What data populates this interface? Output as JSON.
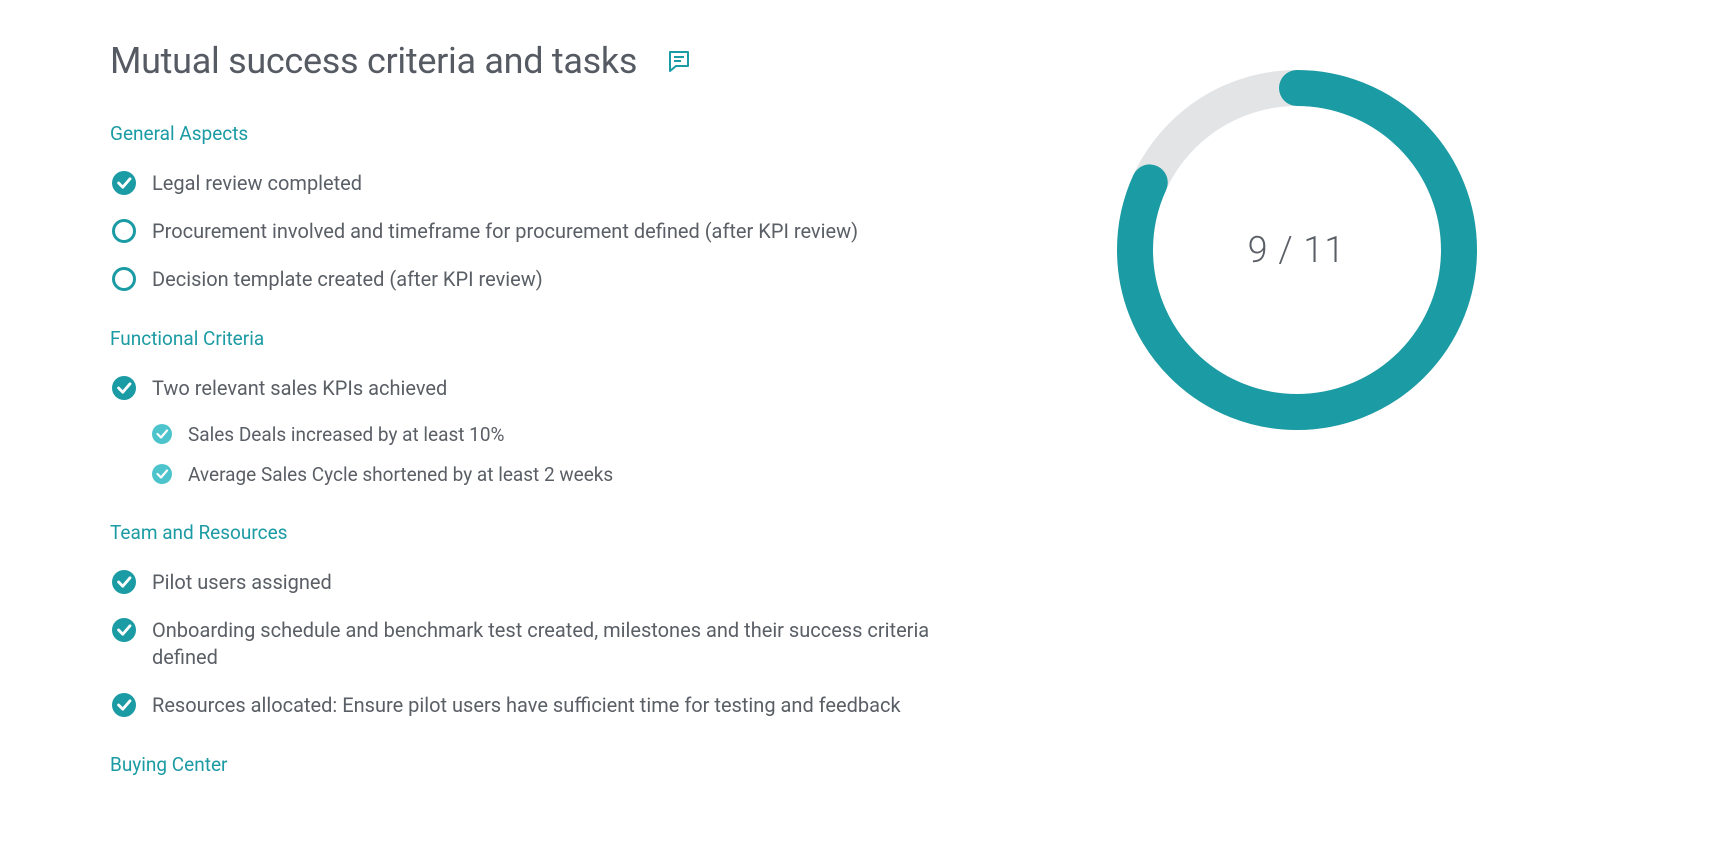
{
  "colors": {
    "accent": "#1b9ba3",
    "accent_light": "#4dc4cc",
    "heading": "#1b9ba3",
    "track": "#e3e4e6",
    "text": "#5a5f66",
    "title": "#555a63"
  },
  "title": "Mutual success criteria and tasks",
  "progress": {
    "done": 9,
    "total": 11,
    "label": "9 / 11",
    "ring": {
      "size": 360,
      "stroke": 36,
      "track_color": "#e3e4e6",
      "fill_color": "#1b9ba3"
    }
  },
  "checkbox": {
    "large_radius": 12,
    "small_radius": 10,
    "stroke": 3
  },
  "sections": [
    {
      "heading": "General Aspects",
      "items": [
        {
          "text": "Legal review completed",
          "checked": true
        },
        {
          "text": "Procurement involved and timeframe for procurement defined (after KPI review)",
          "checked": false
        },
        {
          "text": "Decision template created (after KPI review)",
          "checked": false
        }
      ]
    },
    {
      "heading": "Functional Criteria",
      "items": [
        {
          "text": "Two relevant sales KPIs achieved",
          "checked": true,
          "sub": [
            {
              "text": "Sales Deals increased by at least 10%",
              "checked": true
            },
            {
              "text": "Average Sales Cycle shortened by at least 2 weeks",
              "checked": true
            }
          ]
        }
      ]
    },
    {
      "heading": "Team and Resources",
      "items": [
        {
          "text": "Pilot users assigned",
          "checked": true
        },
        {
          "text": "Onboarding schedule and benchmark test created, milestones and their success criteria defined",
          "checked": true
        },
        {
          "text": "Resources allocated: Ensure pilot users have sufficient time for testing and feedback",
          "checked": true
        }
      ]
    },
    {
      "heading": "Buying Center",
      "items": []
    }
  ]
}
